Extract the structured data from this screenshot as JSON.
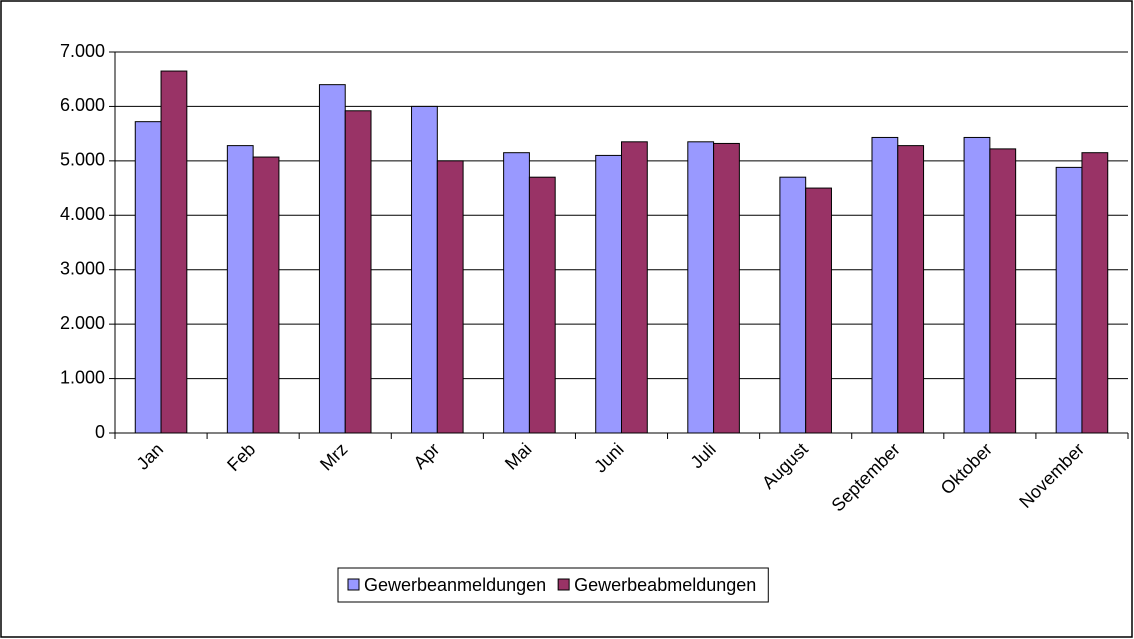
{
  "chart_data": {
    "type": "bar",
    "categories": [
      "Jan",
      "Feb",
      "Mrz",
      "Apr",
      "Mai",
      "Juni",
      "Juli",
      "August",
      "September",
      "Oktober",
      "November"
    ],
    "series": [
      {
        "name": "Gewerbeanmeldungen",
        "color": "#9999ff",
        "values": [
          5720,
          5280,
          6400,
          6000,
          5150,
          5100,
          5350,
          4700,
          5430,
          5430,
          4880
        ]
      },
      {
        "name": "Gewerbeabmeldungen",
        "color": "#993366",
        "values": [
          6650,
          5070,
          5920,
          5000,
          4700,
          5350,
          5320,
          4500,
          5280,
          5220,
          5150
        ]
      }
    ],
    "ylim": [
      0,
      7000
    ],
    "yticks": [
      0,
      {
        "value": 1000,
        "label": "1.000"
      },
      {
        "value": 2000,
        "label": "2.000"
      },
      {
        "value": 3000,
        "label": "3.000"
      },
      {
        "value": 4000,
        "label": "4.000"
      },
      {
        "value": 5000,
        "label": "5.000"
      },
      {
        "value": 6000,
        "label": "6.000"
      },
      {
        "value": 7000,
        "label": "7.000"
      }
    ],
    "grid": true,
    "legend": "bottom"
  }
}
